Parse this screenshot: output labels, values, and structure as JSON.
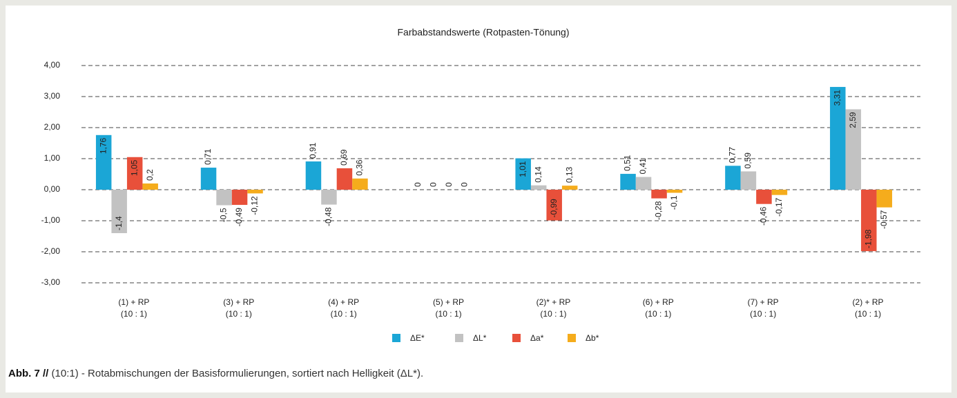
{
  "chart_data": {
    "type": "bar",
    "title": "Farbabstandswerte (Rotpasten-Tönung)",
    "categories": [
      "(1) + RP\n(10 : 1)",
      "(3) + RP\n(10 : 1)",
      "(4) + RP\n(10 : 1)",
      "(5) + RP\n(10 : 1)",
      "(2)* + RP\n(10 : 1)",
      "(6) + RP\n(10 : 1)",
      "(7) + RP\n(10 : 1)",
      "(2) + RP\n(10 : 1)"
    ],
    "series": [
      {
        "name": "ΔE*",
        "color": "#1ba6d6",
        "values": [
          1.76,
          0.71,
          0.91,
          0,
          1.01,
          0.51,
          0.77,
          3.31
        ],
        "value_labels": [
          "1,76",
          "0,71",
          "0,91",
          "0",
          "1,01",
          "0,51",
          "0,77",
          "3,31"
        ]
      },
      {
        "name": "ΔL*",
        "color": "#c2c2c2",
        "values": [
          -1.4,
          -0.5,
          -0.48,
          0,
          0.14,
          0.41,
          0.59,
          2.59
        ],
        "value_labels": [
          "-1,4",
          "-0,5",
          "-0,48",
          "0",
          "0,14",
          "0,41",
          "0,59",
          "2,59"
        ]
      },
      {
        "name": "Δa*",
        "color": "#e8503a",
        "values": [
          1.05,
          -0.49,
          0.69,
          0,
          -0.99,
          -0.28,
          -0.46,
          -1.98
        ],
        "value_labels": [
          "1,05",
          "-0,49",
          "0,69",
          "0",
          "-0,99",
          "-0,28",
          "-0,46",
          "-1,98"
        ]
      },
      {
        "name": "Δb*",
        "color": "#f5ac1c",
        "values": [
          0.2,
          -0.12,
          0.36,
          0,
          0.13,
          -0.1,
          -0.17,
          -0.57
        ],
        "value_labels": [
          "0,2",
          "-0,12",
          "0,36",
          "0",
          "0,13",
          "-0,1",
          "-0,17",
          "-0,57"
        ]
      }
    ],
    "ylim": [
      -3,
      4
    ],
    "yticks": [
      {
        "value": -3,
        "label": "-3,00"
      },
      {
        "value": -2,
        "label": "-2,00"
      },
      {
        "value": -1,
        "label": "-1,00"
      },
      {
        "value": 0,
        "label": "0,00"
      },
      {
        "value": 1,
        "label": "1,00"
      },
      {
        "value": 2,
        "label": "2,00"
      },
      {
        "value": 3,
        "label": "3,00"
      },
      {
        "value": 4,
        "label": "4,00"
      }
    ],
    "grid": true,
    "legend": "bottom"
  },
  "caption": {
    "label": "Abb. 7 //",
    "text": "(10:1) - Rotabmischungen der Basisformulierungen, sortiert nach Helligkeit (ΔL*)."
  }
}
